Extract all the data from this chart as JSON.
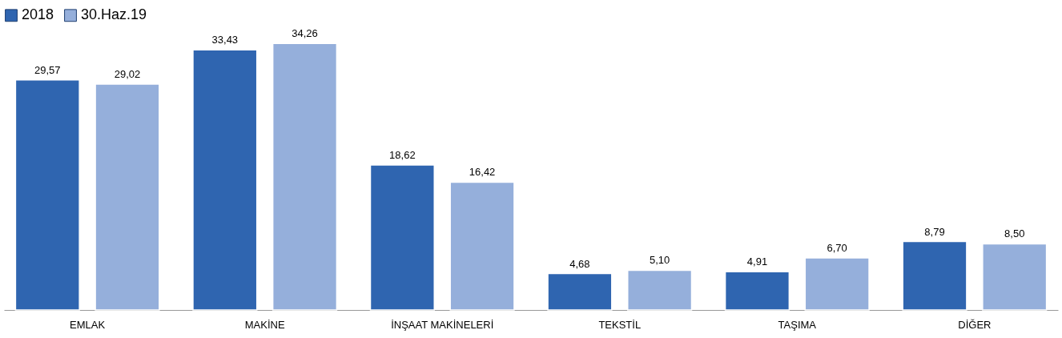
{
  "chart_data": {
    "type": "bar",
    "categories": [
      "EMLAK",
      "MAKİNE",
      "İNŞAAT MAKİNELERİ",
      "TEKSTİL",
      "TAŞIMA",
      "DİĞER"
    ],
    "series": [
      {
        "name": "2018",
        "color": "#2f65b0",
        "values": [
          29.57,
          33.43,
          18.62,
          4.68,
          4.91,
          8.79
        ],
        "value_labels": [
          "29,57",
          "33,43",
          "18,62",
          "4,68",
          "4,91",
          "8,79"
        ]
      },
      {
        "name": "30.Haz.19",
        "color": "#95afdb",
        "values": [
          29.02,
          34.26,
          16.42,
          5.1,
          6.7,
          8.5
        ],
        "value_labels": [
          "29,02",
          "34,26",
          "16,42",
          "5,10",
          "6,70",
          "8,50"
        ]
      }
    ],
    "legend": "top",
    "grid": false
  }
}
